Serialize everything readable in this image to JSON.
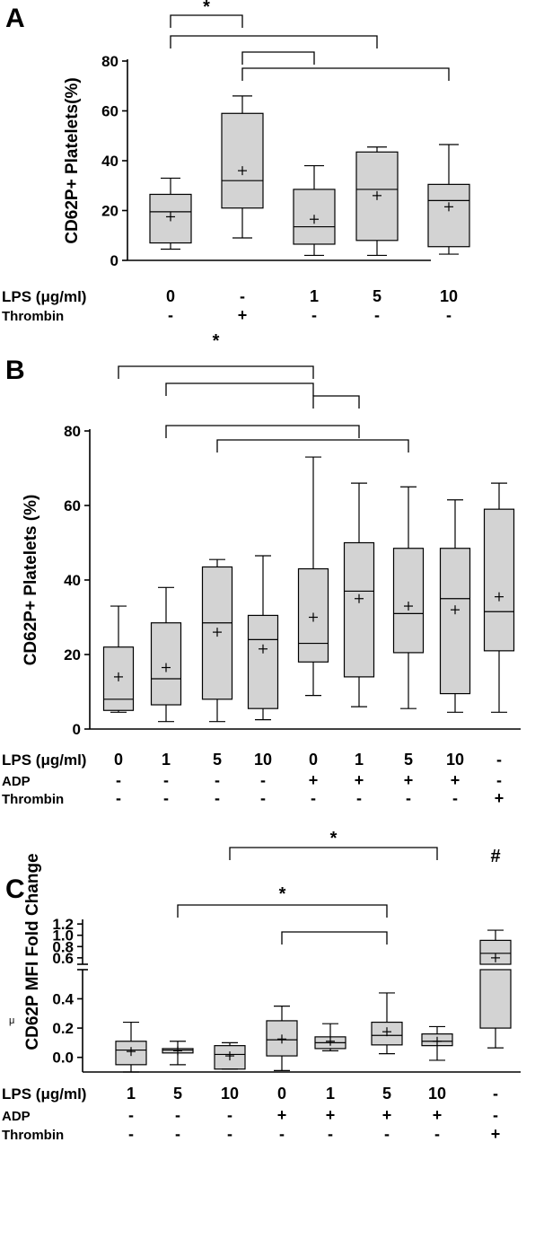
{
  "chart_data": [
    {
      "panel": "A",
      "type": "boxplot",
      "ylabel": "CD62P+ Platelets(%)",
      "ylim": [
        0,
        80
      ],
      "yticks": [
        0,
        20,
        40,
        60,
        80
      ],
      "rows": [
        {
          "label": "LPS (μg/ml)",
          "values": [
            "0",
            "-",
            "1",
            "5",
            "10"
          ]
        },
        {
          "label": "Thrombin",
          "values": [
            "-",
            "+",
            "-",
            "-",
            "-"
          ]
        }
      ],
      "boxes": [
        {
          "min": 4.5,
          "q1": 7,
          "median": 19.5,
          "q3": 26.5,
          "max": 33,
          "mean": 17.5
        },
        {
          "min": 9,
          "q1": 21,
          "median": 32,
          "q3": 59,
          "max": 66,
          "mean": 36
        },
        {
          "min": 2,
          "q1": 6.5,
          "median": 13.5,
          "q3": 28.5,
          "max": 38,
          "mean": 16.5
        },
        {
          "min": 2,
          "q1": 8,
          "median": 28.5,
          "q3": 43.5,
          "max": 45.5,
          "mean": 26
        },
        {
          "min": 2.5,
          "q1": 5.5,
          "median": 24,
          "q3": 30.5,
          "max": 46.5,
          "mean": 21.5
        }
      ],
      "significance": [
        {
          "label": "*",
          "from": 0,
          "to": 1
        },
        {
          "label": "",
          "from": 0,
          "to": 3
        },
        {
          "label": "",
          "from": 1,
          "to": 2
        },
        {
          "label": "",
          "from": 1,
          "to": 4
        }
      ]
    },
    {
      "panel": "B",
      "type": "boxplot",
      "ylabel": "CD62P+ Platelets (%)",
      "ylim": [
        0,
        80
      ],
      "yticks": [
        0,
        20,
        40,
        60,
        80
      ],
      "rows": [
        {
          "label": "LPS (μg/ml)",
          "values": [
            "0",
            "1",
            "5",
            "10",
            "0",
            "1",
            "5",
            "10",
            "-"
          ]
        },
        {
          "label": "ADP",
          "values": [
            "-",
            "-",
            "-",
            "-",
            "+",
            "+",
            "+",
            "+",
            "-"
          ]
        },
        {
          "label": "Thrombin",
          "values": [
            "-",
            "-",
            "-",
            "-",
            "-",
            "-",
            "-",
            "-",
            "+"
          ]
        }
      ],
      "boxes": [
        {
          "min": 4.5,
          "q1": 5,
          "median": 8,
          "q3": 22,
          "max": 33,
          "mean": 14
        },
        {
          "min": 2,
          "q1": 6.5,
          "median": 13.5,
          "q3": 28.5,
          "max": 38,
          "mean": 16.5
        },
        {
          "min": 2,
          "q1": 8,
          "median": 28.5,
          "q3": 43.5,
          "max": 45.5,
          "mean": 26
        },
        {
          "min": 2.5,
          "q1": 5.5,
          "median": 24,
          "q3": 30.5,
          "max": 46.5,
          "mean": 21.5
        },
        {
          "min": 9,
          "q1": 18,
          "median": 23,
          "q3": 43,
          "max": 73,
          "mean": 30
        },
        {
          "min": 6,
          "q1": 14,
          "median": 37,
          "q3": 50,
          "max": 66,
          "mean": 35
        },
        {
          "min": 5.5,
          "q1": 20.5,
          "median": 31,
          "q3": 48.5,
          "max": 65,
          "mean": 33
        },
        {
          "min": 4.5,
          "q1": 9.5,
          "median": 35,
          "q3": 48.5,
          "max": 61.5,
          "mean": 32
        },
        {
          "min": 4.5,
          "q1": 21,
          "median": 31.5,
          "q3": 59,
          "max": 66,
          "mean": 35.5
        }
      ],
      "significance": [
        {
          "label": "*",
          "from": 0,
          "to": 4
        },
        {
          "label": "",
          "from": 1,
          "to": 4
        },
        {
          "label": "",
          "from": 4,
          "to": 5
        },
        {
          "label": "",
          "from": 1,
          "to": 5
        },
        {
          "label": "",
          "from": 2,
          "to": 6
        }
      ]
    },
    {
      "panel": "C",
      "type": "boxplot",
      "ylabel": "CD62P MFI Fold Change",
      "y_axis_break": true,
      "lower_ylim": [
        -0.1,
        0.55
      ],
      "lower_yticks": [
        "0.0",
        "0.2",
        "0.4"
      ],
      "upper_ylim": [
        0.55,
        1.25
      ],
      "upper_yticks": [
        "0.6",
        "0.8",
        "1.0",
        "1.2"
      ],
      "stray_mark": "μ",
      "rows": [
        {
          "label": "LPS (μg/ml)",
          "values": [
            "1",
            "5",
            "10",
            "0",
            "1",
            "5",
            "10",
            "-"
          ]
        },
        {
          "label": "ADP",
          "values": [
            "-",
            "-",
            "-",
            "+",
            "+",
            "+",
            "+",
            "-"
          ]
        },
        {
          "label": "Thrombin",
          "values": [
            "-",
            "-",
            "-",
            "-",
            "-",
            "-",
            "-",
            "+"
          ]
        }
      ],
      "boxes": [
        {
          "min": -0.1,
          "q1": -0.05,
          "median": 0.05,
          "q3": 0.11,
          "max": 0.24,
          "mean": 0.04
        },
        {
          "min": -0.05,
          "q1": 0.03,
          "median": 0.05,
          "q3": 0.06,
          "max": 0.11,
          "mean": 0.045
        },
        {
          "min": -0.08,
          "q1": -0.08,
          "median": 0.02,
          "q3": 0.08,
          "max": 0.1,
          "mean": 0.01
        },
        {
          "min": -0.09,
          "q1": 0.01,
          "median": 0.12,
          "q3": 0.25,
          "max": 0.35,
          "mean": 0.125
        },
        {
          "min": 0.045,
          "q1": 0.06,
          "median": 0.1,
          "q3": 0.14,
          "max": 0.23,
          "mean": 0.11
        },
        {
          "min": 0.025,
          "q1": 0.085,
          "median": 0.15,
          "q3": 0.24,
          "max": 0.44,
          "mean": 0.175
        },
        {
          "min": -0.02,
          "q1": 0.08,
          "median": 0.11,
          "q3": 0.16,
          "max": 0.21,
          "mean": 0.11
        },
        {
          "min": 0.065,
          "q1": 0.2,
          "median": 0.68,
          "q3": 0.91,
          "max": 1.09,
          "mean": 0.6
        }
      ],
      "significance": [
        {
          "label": "*",
          "from": 2,
          "to": 6
        },
        {
          "label": "*",
          "from": 1,
          "to": 5
        },
        {
          "label": "",
          "from": 3,
          "to": 5
        },
        {
          "label": "#",
          "from": 7,
          "to": 7
        }
      ]
    }
  ]
}
